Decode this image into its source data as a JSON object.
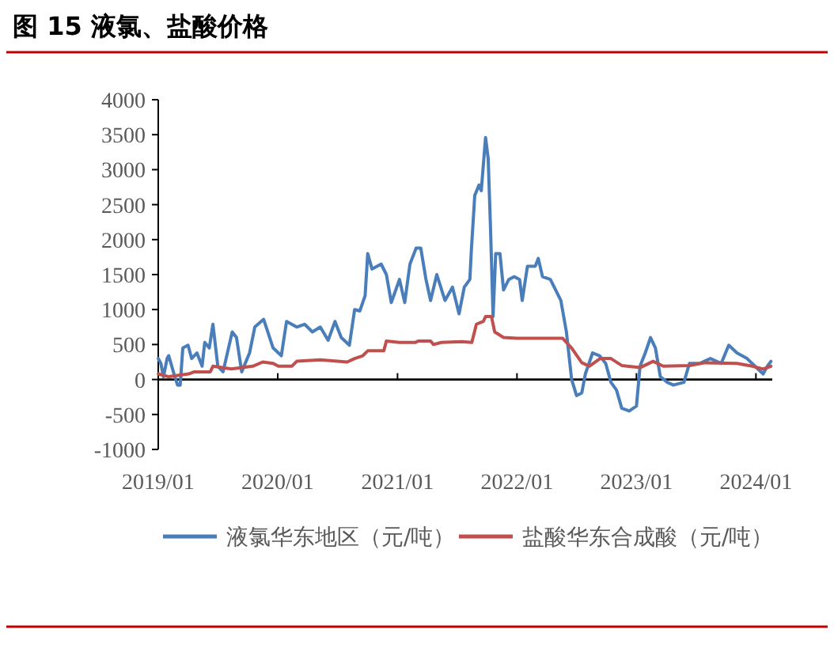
{
  "chart_data": {
    "type": "line",
    "title": "图 15 液氯、盐酸价格",
    "ylim": [
      -1000,
      4000
    ],
    "yticks": [
      -1000,
      -500,
      0,
      500,
      1000,
      1500,
      2000,
      2500,
      3000,
      3500,
      4000
    ],
    "xlim": [
      "2019-01-01",
      "2024-02-20"
    ],
    "xticks": [
      {
        "value": "2019-01-01",
        "label": "2019/01"
      },
      {
        "value": "2020-01-01",
        "label": "2020/01"
      },
      {
        "value": "2021-01-01",
        "label": "2021/01"
      },
      {
        "value": "2022-01-01",
        "label": "2022/01"
      },
      {
        "value": "2023-01-01",
        "label": "2023/01"
      },
      {
        "value": "2024-01-01",
        "label": "2024/01"
      }
    ],
    "legend": "bottom",
    "marker": "none",
    "line_style": "solid",
    "series": [
      {
        "name": "液氯华东地区（元/吨）",
        "color": "#4a7ebb",
        "x": [
          "2019-01-01",
          "2019-01-09",
          "2019-01-17",
          "2019-01-28",
          "2019-02-02",
          "2019-02-18",
          "2019-03-01",
          "2019-03-09",
          "2019-03-17",
          "2019-04-02",
          "2019-04-13",
          "2019-04-29",
          "2019-05-15",
          "2019-05-23",
          "2019-06-06",
          "2019-06-17",
          "2019-07-02",
          "2019-07-18",
          "2019-08-15",
          "2019-08-28",
          "2019-09-13",
          "2019-10-07",
          "2019-10-23",
          "2019-11-19",
          "2019-12-18",
          "2020-01-12",
          "2020-01-28",
          "2020-02-28",
          "2020-03-23",
          "2020-04-16",
          "2020-05-10",
          "2020-06-03",
          "2020-06-24",
          "2020-07-13",
          "2020-08-07",
          "2020-08-23",
          "2020-09-08",
          "2020-09-24",
          "2020-10-02",
          "2020-10-15",
          "2020-11-12",
          "2020-11-28",
          "2020-12-13",
          "2021-01-07",
          "2021-01-23",
          "2021-02-08",
          "2021-02-27",
          "2021-03-13",
          "2021-03-29",
          "2021-04-12",
          "2021-05-01",
          "2021-05-26",
          "2021-06-18",
          "2021-07-08",
          "2021-07-24",
          "2021-08-10",
          "2021-08-15",
          "2021-08-25",
          "2021-09-07",
          "2021-09-14",
          "2021-09-27",
          "2021-10-05",
          "2021-10-12",
          "2021-10-20",
          "2021-10-28",
          "2021-11-10",
          "2021-11-21",
          "2021-12-07",
          "2021-12-23",
          "2022-01-09",
          "2022-01-17",
          "2022-02-02",
          "2022-02-26",
          "2022-03-07",
          "2022-03-20",
          "2022-04-13",
          "2022-04-29",
          "2022-05-15",
          "2022-06-01",
          "2022-06-17",
          "2022-07-02",
          "2022-07-18",
          "2022-07-29",
          "2022-08-20",
          "2022-09-10",
          "2022-09-29",
          "2022-10-15",
          "2022-11-01",
          "2022-11-17",
          "2022-12-10",
          "2023-01-01",
          "2023-01-12",
          "2023-01-28",
          "2023-02-13",
          "2023-02-28",
          "2023-03-15",
          "2023-04-05",
          "2023-04-24",
          "2023-05-26",
          "2023-06-12",
          "2023-07-13",
          "2023-08-15",
          "2023-09-17",
          "2023-10-10",
          "2023-11-04",
          "2023-12-05",
          "2023-12-29",
          "2024-01-23",
          "2024-02-05",
          "2024-02-16"
        ],
        "values": [
          300,
          230,
          40,
          300,
          340,
          80,
          -80,
          -80,
          450,
          490,
          300,
          380,
          190,
          530,
          450,
          790,
          190,
          110,
          680,
          600,
          110,
          380,
          750,
          860,
          450,
          340,
          830,
          750,
          790,
          680,
          750,
          560,
          830,
          600,
          490,
          1000,
          980,
          1200,
          1800,
          1580,
          1650,
          1500,
          1100,
          1430,
          1100,
          1650,
          1880,
          1880,
          1430,
          1130,
          1500,
          1130,
          1320,
          940,
          1320,
          1430,
          1880,
          2630,
          2780,
          2700,
          3460,
          3160,
          2180,
          900,
          1800,
          1800,
          1280,
          1430,
          1470,
          1430,
          1130,
          1620,
          1620,
          1730,
          1470,
          1430,
          1280,
          1130,
          680,
          0,
          -230,
          -190,
          80,
          380,
          340,
          230,
          -40,
          -150,
          -410,
          -450,
          -380,
          190,
          380,
          600,
          450,
          40,
          -40,
          -80,
          -40,
          230,
          230,
          300,
          230,
          490,
          380,
          300,
          190,
          80,
          190,
          260
        ]
      },
      {
        "name": "盐酸华东合成酸（元/吨）",
        "color": "#c0504d",
        "x": [
          "2019-01-01",
          "2019-02-02",
          "2019-04-04",
          "2019-04-21",
          "2019-06-09",
          "2019-06-17",
          "2019-08-12",
          "2019-10-17",
          "2019-11-16",
          "2019-12-18",
          "2020-01-03",
          "2020-02-13",
          "2020-02-28",
          "2020-05-10",
          "2020-07-31",
          "2020-08-23",
          "2020-09-17",
          "2020-10-02",
          "2020-11-20",
          "2020-11-28",
          "2021-01-07",
          "2021-02-25",
          "2021-03-05",
          "2021-04-12",
          "2021-04-21",
          "2021-05-15",
          "2021-07-16",
          "2021-08-16",
          "2021-08-30",
          "2021-09-20",
          "2021-09-27",
          "2021-10-15",
          "2021-10-25",
          "2021-11-21",
          "2022-01-01",
          "2022-05-20",
          "2022-06-17",
          "2022-07-18",
          "2022-08-10",
          "2022-09-12",
          "2022-10-15",
          "2022-11-17",
          "2023-01-12",
          "2023-02-21",
          "2023-03-24",
          "2023-06-12",
          "2023-07-30",
          "2023-11-04",
          "2023-12-21",
          "2024-01-23",
          "2024-02-16"
        ],
        "values": [
          80,
          40,
          80,
          110,
          110,
          190,
          150,
          190,
          250,
          230,
          190,
          190,
          260,
          280,
          250,
          300,
          340,
          410,
          410,
          550,
          530,
          530,
          550,
          550,
          500,
          530,
          540,
          530,
          790,
          830,
          900,
          900,
          680,
          600,
          590,
          590,
          450,
          240,
          190,
          300,
          300,
          200,
          170,
          260,
          190,
          200,
          240,
          230,
          190,
          150,
          190
        ]
      }
    ]
  }
}
